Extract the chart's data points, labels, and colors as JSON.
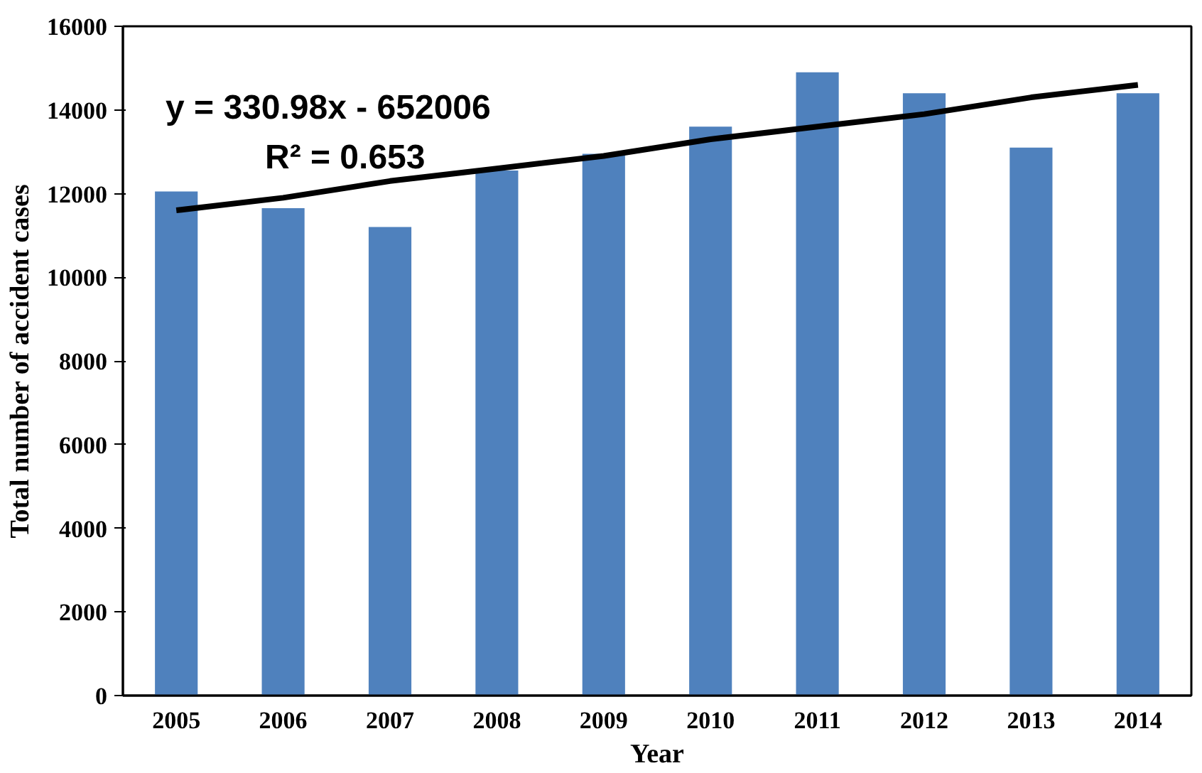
{
  "chart_data": {
    "type": "bar",
    "xlabel": "Year",
    "ylabel": "Total number of accident cases",
    "categories": [
      "2005",
      "2006",
      "2007",
      "2008",
      "2009",
      "2010",
      "2011",
      "2012",
      "2013",
      "2014"
    ],
    "series": [
      {
        "color": "#4f81bd",
        "values": [
          12050,
          11650,
          11200,
          12550,
          12950,
          13600,
          14900,
          14400,
          13100,
          14400
        ]
      },
      {
        "type": "line",
        "color": "#000000",
        "values": [
          11600,
          11900,
          12300,
          12600,
          12900,
          13300,
          13600,
          13900,
          14300,
          14600
        ]
      }
    ],
    "ylim": [
      0,
      16000
    ],
    "yticks": [
      0,
      2000,
      4000,
      6000,
      8000,
      10000,
      12000,
      14000,
      16000
    ],
    "grid": false,
    "annotations": [
      "y = 330.98x - 652006",
      "R² = 0.653"
    ]
  }
}
